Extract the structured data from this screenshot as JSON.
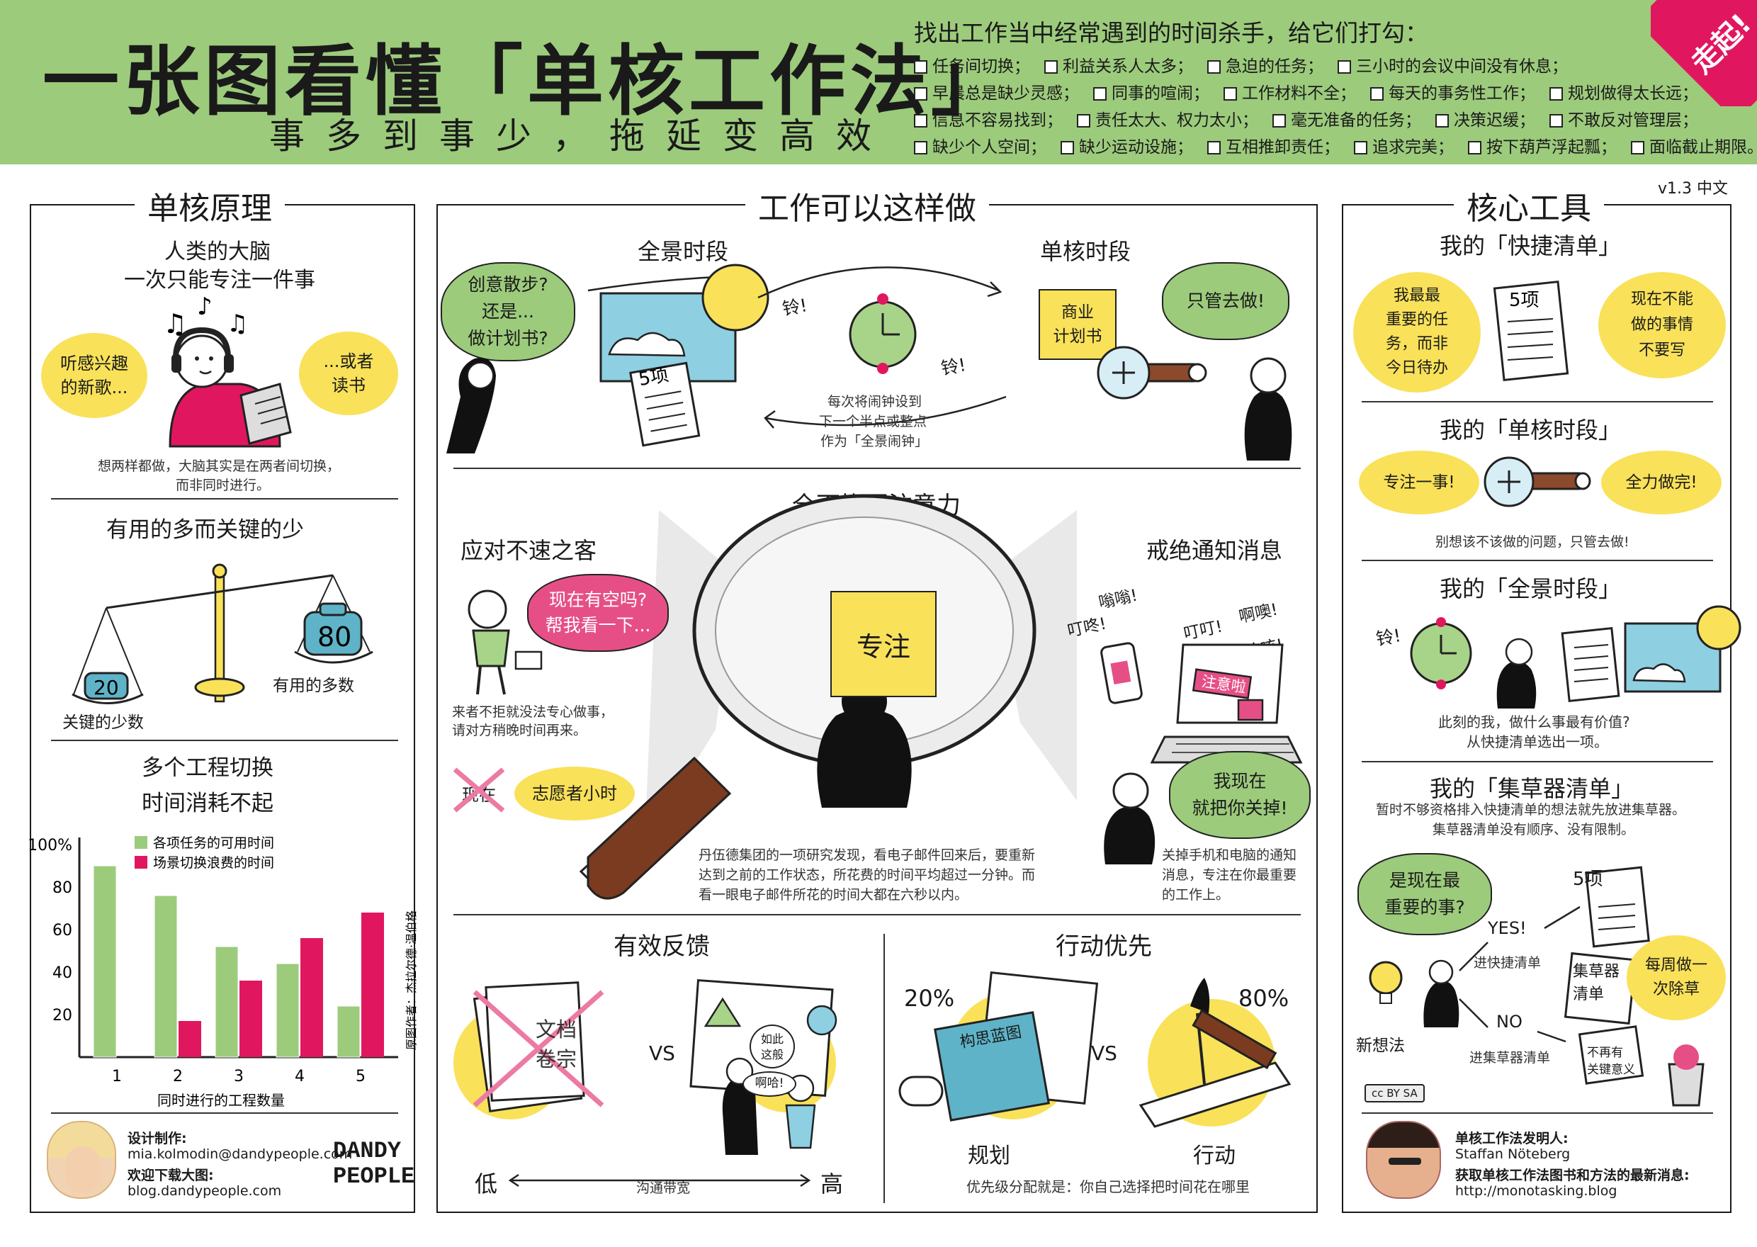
{
  "header": {
    "title": "一张图看懂「单核工作法」",
    "subtitle": "事多到事少，拖延变高效",
    "killers_title": "找出工作当中经常遇到的时间杀手，给它们打勾：",
    "killers": [
      [
        "任务间切换；",
        "利益关系人太多；",
        "急迫的任务；",
        "三小时的会议中间没有休息；"
      ],
      [
        "早晨总是缺少灵感；",
        "同事的喧闹；",
        "工作材料不全；",
        "每天的事务性工作；",
        "规划做得太长远；"
      ],
      [
        "信息不容易找到；",
        "责任太大、权力太小；",
        "毫无准备的任务；",
        "决策迟缓；",
        "不敢反对管理层；"
      ],
      [
        "缺少个人空间；",
        "缺少运动设施；",
        "互相推卸责任；",
        "追求完美；",
        "按下葫芦浮起瓢；",
        "面临截止期限。"
      ]
    ],
    "corner_label": "走起!",
    "version": "v1.3 中文",
    "colors": {
      "green": "#9ccb7c",
      "pink": "#e0175f",
      "yellow": "#f9e159"
    }
  },
  "left": {
    "title": "单核原理",
    "brain": {
      "heading1": "人类的大脑",
      "heading2": "一次只能专注一件事",
      "bubble_left": "听感兴趣\n的新歌...",
      "bubble_right": "...或者\n读书",
      "caption1": "想两样都做，大脑其实是在两者间切换，",
      "caption2": "而非同时进行。"
    },
    "scale": {
      "heading": "有用的多而关键的少",
      "left_value": "20",
      "right_value": "80",
      "left_label": "关键的少数",
      "right_label": "有用的多数"
    },
    "chart_heading1": "多个工程切换",
    "chart_heading2": "时间消耗不起",
    "credit": {
      "label": "设计制作:",
      "email": "mia.kolmodin@dandypeople.com",
      "download": "欢迎下载大图:",
      "blog": "blog.dandypeople.com",
      "brand1": "DANDY",
      "brand2": "PEOPLE"
    }
  },
  "chart_data": {
    "type": "bar",
    "xlabel": "同时进行的工程数量",
    "categories": [
      "1",
      "2",
      "3",
      "4",
      "5"
    ],
    "yticks": [
      "100%",
      "80",
      "60",
      "40",
      "20"
    ],
    "ylim": [
      0,
      100
    ],
    "series": [
      {
        "name": "各项任务的可用时间",
        "color": "#9ccb7c",
        "values": [
          90,
          76,
          52,
          44,
          24
        ]
      },
      {
        "name": "场景切换浪费的时间",
        "color": "#e0175f",
        "values": [
          0,
          17,
          36,
          56,
          68
        ]
      }
    ],
    "credit": "原图作者：杰拉尔德·温伯格",
    "legend": "top-right",
    "grid": false
  },
  "middle": {
    "title": "工作可以这样做",
    "overview": {
      "label": "全景时段",
      "bubble": "创意散步?\n还是...\n做计划书?",
      "list": "5项"
    },
    "monotask": {
      "label": "单核时段",
      "sticky": "商业\n计划书",
      "bubble": "只管去做!"
    },
    "clock": {
      "ring1": "铃!",
      "ring2": "铃!",
      "caption1": "每次将闹钟设到",
      "caption2": "下一个半点或整点",
      "caption3": "作为「全景闹钟」"
    },
    "attention": {
      "title": "全面挽回注意力",
      "focus": "专注",
      "guest_title": "应对不速之客",
      "guest_bubble": "现在有空吗?\n帮我看一下...",
      "guest_text1": "来者不拒就没法专心做事，",
      "guest_text2": "请对方稍晚时间再来。",
      "now": "现在",
      "volunteer": "志愿者小时",
      "notify_title": "戒绝通知消息",
      "sounds": [
        "嗡嗡!",
        "叮咚!",
        "叮叮!",
        "啊噢!",
        "咳咳!"
      ],
      "tag": "注意啦",
      "notify_bubble": "我现在\n就把你关掉!",
      "notify_text1": "关掉手机和电脑的通知",
      "notify_text2": "消息，专注在你最重要",
      "notify_text3": "的工作上。",
      "study1": "丹伍德集团的一项研究发现，看电子邮件回来后，要重新",
      "study2": "达到之前的工作状态，所花费的时间平均超过一分钟。而",
      "study3": "看一眼电子邮件所花的时间大都在六秒以内。"
    },
    "feedback": {
      "title": "有效反馈",
      "doc": "文档\n卷宗",
      "vs": "VS",
      "bubble1": "如此\n这般",
      "bubble2": "啊哈!",
      "low": "低",
      "high": "高",
      "axis": "沟通带宽"
    },
    "action": {
      "title": "行动优先",
      "pct_plan": "20%",
      "pct_act": "80%",
      "blueprint": "构思蓝图",
      "vs": "VS",
      "plan": "规划",
      "act": "行动",
      "caption": "优先级分配就是：你自己选择把时间花在哪里"
    }
  },
  "right": {
    "title": "核心工具",
    "quick": {
      "heading": "我的「快捷清单」",
      "left_blob": "我最最\n重要的任\n务，而非\n今日待办",
      "list": "5项",
      "right_blob": "现在不能\n做的事情\n不要写"
    },
    "mono": {
      "heading": "我的「单核时段」",
      "left_blob": "专注一事!",
      "right_blob": "全力做完!",
      "caption": "别想该不该做的问题，只管去做!"
    },
    "overview": {
      "heading": "我的「全景时段」",
      "ring": "铃!",
      "caption1": "此刻的我，做什么事最有价值?",
      "caption2": "从快捷清单选出一项。"
    },
    "collector": {
      "heading": "我的「集草器清单」",
      "text1": "暂时不够资格排入快捷清单的想法就先放进集草器。",
      "text2": "集草器清单没有顺序、没有限制。",
      "bubble": "是现在最\n重要的事?",
      "yes": "YES!",
      "to_quick": "进快捷清单",
      "list": "5项",
      "idea": "新想法",
      "no": "NO",
      "to_collector": "进集草器清单",
      "collector_note": "集草器\n清单",
      "weekly": "每周做一\n次除草",
      "irrelevant": "不再有\n关键意义"
    },
    "cc": "cc BY SA",
    "inventor": {
      "label": "单核工作法发明人:",
      "name": "Staffan Nöteberg",
      "news": "获取单核工作法图书和方法的最新消息:",
      "url": "http://monotasking.blog"
    }
  }
}
